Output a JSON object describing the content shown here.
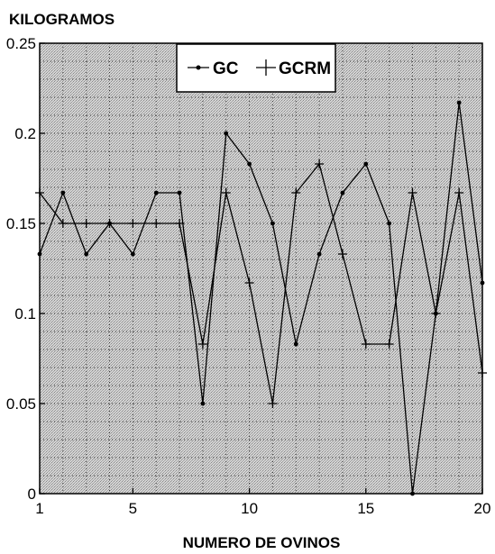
{
  "chart_data": {
    "type": "line",
    "title": "",
    "ylabel": "KILOGRAMOS",
    "xlabel": "NUMERO DE OVINOS",
    "xlim": [
      1,
      20
    ],
    "ylim": [
      0,
      0.25
    ],
    "x_ticks": [
      1,
      5,
      10,
      15,
      20
    ],
    "y_ticks": [
      0,
      0.05,
      0.1,
      0.15,
      0.2,
      0.25
    ],
    "y_tick_labels": [
      "0",
      "0.05",
      "0.1",
      "0.15",
      "0.2",
      "0.25"
    ],
    "grid": true,
    "legend_position": "top-right",
    "x": [
      1,
      2,
      3,
      4,
      5,
      6,
      7,
      8,
      9,
      10,
      11,
      12,
      13,
      14,
      15,
      16,
      17,
      18,
      19,
      20
    ],
    "series": [
      {
        "name": "GC",
        "marker": "dot",
        "color": "#000000",
        "values": [
          0.133,
          0.167,
          0.133,
          0.15,
          0.133,
          0.167,
          0.167,
          0.05,
          0.2,
          0.183,
          0.15,
          0.083,
          0.133,
          0.167,
          0.183,
          0.15,
          0.0,
          0.1,
          0.217,
          0.117
        ]
      },
      {
        "name": "GCRM",
        "marker": "plus",
        "color": "#000000",
        "values": [
          0.167,
          0.15,
          0.15,
          0.15,
          0.15,
          0.15,
          0.15,
          0.083,
          0.167,
          0.117,
          0.05,
          0.167,
          0.183,
          0.133,
          0.083,
          0.083,
          0.167,
          0.1,
          0.167,
          0.067
        ]
      }
    ]
  }
}
